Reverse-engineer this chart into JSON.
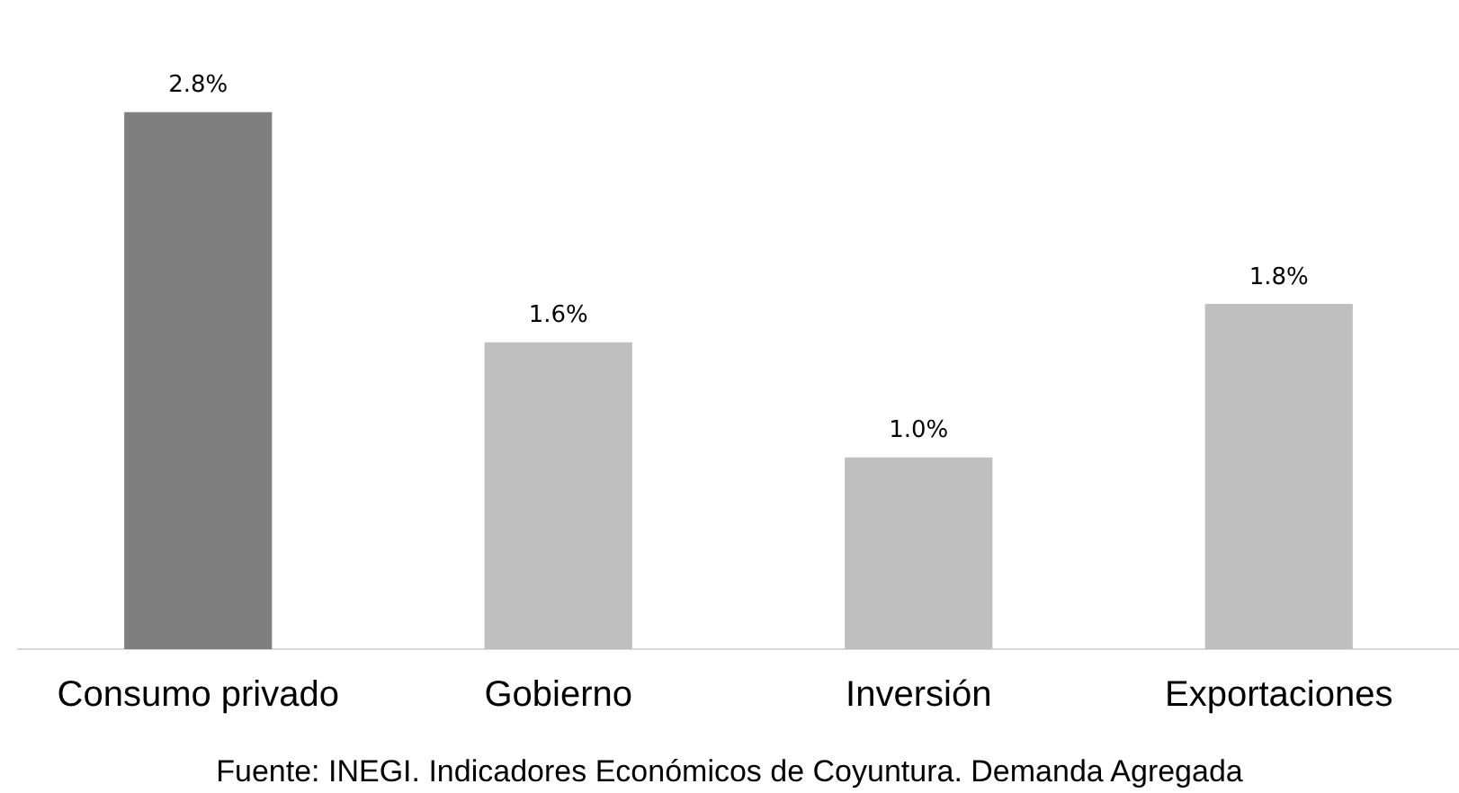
{
  "chart_data": {
    "type": "bar",
    "categories": [
      "Consumo privado",
      "Gobierno",
      "Inversión",
      "Exportaciones"
    ],
    "values": [
      2.8,
      1.6,
      1.0,
      1.8
    ],
    "colors": [
      "#7f7f7f",
      "#bfbfbf",
      "#bfbfbf",
      "#bfbfbf"
    ],
    "value_labels": [
      "2.8%",
      "1.6%",
      "1.0%",
      "1.8%"
    ],
    "grid": false,
    "legend": false,
    "annotations": [
      "Fuente: INEGI. Indicadores Económicos de Coyuntura. Demanda Agregada"
    ]
  }
}
